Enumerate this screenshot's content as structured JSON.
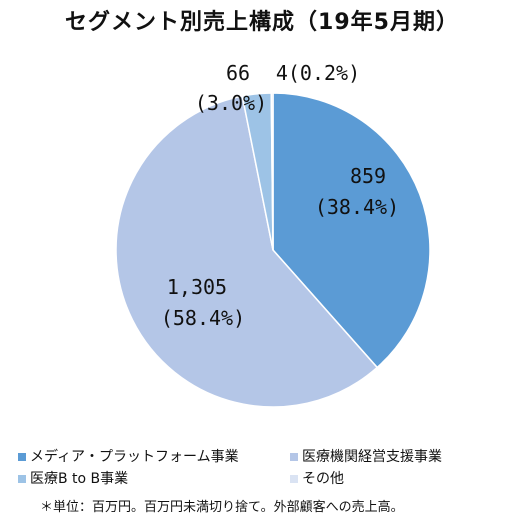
{
  "chart_data": {
    "type": "pie",
    "title": "セグメント別売上構成（19年5月期）",
    "categories": [
      "メディア・プラットフォーム事業",
      "医療機関経営支援事業",
      "医療B to B事業",
      "その他"
    ],
    "values": [
      859,
      1305,
      66,
      4
    ],
    "value_labels": [
      "859",
      "1,305",
      "66",
      "4"
    ],
    "percent_labels": [
      "(38.4%)",
      "(58.4%)",
      "(3.0%)",
      "(0.2%)"
    ],
    "start_angle_deg": 0,
    "direction": "clockwise",
    "colors": [
      "#5b9bd5",
      "#b4c6e7",
      "#9dc3e6",
      "#dae3f3"
    ],
    "legend_position": "bottom"
  },
  "footnote": "＊単位：百万円。百万円未満切り捨て。外部顧客への売上高。"
}
